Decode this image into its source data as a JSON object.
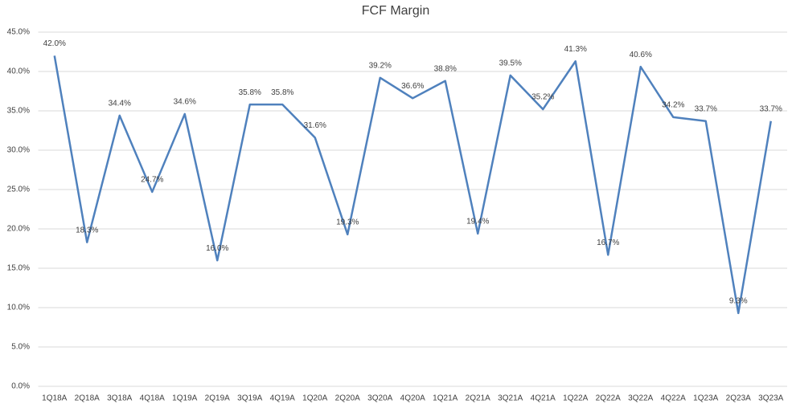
{
  "chart_data": {
    "type": "line",
    "title": "FCF Margin",
    "categories": [
      "1Q18A",
      "2Q18A",
      "3Q18A",
      "4Q18A",
      "1Q19A",
      "2Q19A",
      "3Q19A",
      "4Q19A",
      "1Q20A",
      "2Q20A",
      "3Q20A",
      "4Q20A",
      "1Q21A",
      "2Q21A",
      "3Q21A",
      "4Q21A",
      "1Q22A",
      "2Q22A",
      "3Q22A",
      "4Q22A",
      "1Q23A",
      "2Q23A",
      "3Q23A"
    ],
    "values": [
      42.0,
      18.3,
      34.4,
      24.7,
      34.6,
      16.0,
      35.8,
      35.8,
      31.6,
      19.3,
      39.2,
      36.6,
      38.8,
      19.4,
      39.5,
      35.2,
      41.3,
      16.7,
      40.6,
      34.2,
      33.7,
      9.3,
      33.7
    ],
    "value_labels": [
      "42.0%",
      "18.3%",
      "34.4%",
      "24.7%",
      "34.6%",
      "16.0%",
      "35.8%",
      "35.8%",
      "31.6%",
      "19.3%",
      "39.2%",
      "36.6%",
      "38.8%",
      "19.4%",
      "39.5%",
      "35.2%",
      "41.3%",
      "16.7%",
      "40.6%",
      "34.2%",
      "33.7%",
      "9.3%",
      "33.7%"
    ],
    "color": "#4f81bd",
    "ylim": [
      0,
      45
    ],
    "yticks": [
      {
        "value": 0,
        "label": "0.0%"
      },
      {
        "value": 5,
        "label": "5.0%"
      },
      {
        "value": 10,
        "label": "10.0%"
      },
      {
        "value": 15,
        "label": "15.0%"
      },
      {
        "value": 20,
        "label": "20.0%"
      },
      {
        "value": 25,
        "label": "25.0%"
      },
      {
        "value": 30,
        "label": "30.0%"
      },
      {
        "value": 35,
        "label": "35.0%"
      },
      {
        "value": 40,
        "label": "40.0%"
      },
      {
        "value": 45,
        "label": "45.0%"
      }
    ],
    "grid": true
  }
}
